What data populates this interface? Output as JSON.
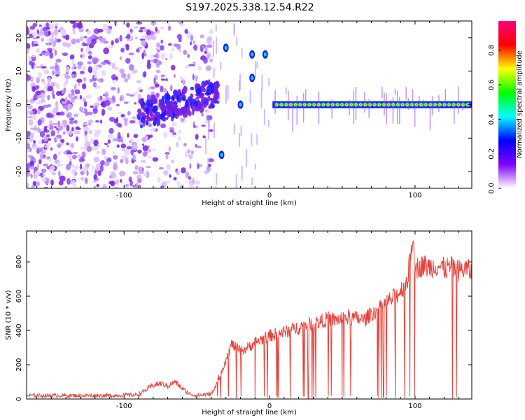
{
  "chart_data": [
    {
      "type": "heatmap",
      "title": "S197.2025.338.12.54.R22",
      "xlabel": "Height of straight line (km)",
      "ylabel": "Frequency (Hz)",
      "xlim": [
        -167,
        139
      ],
      "ylim": [
        -25,
        25
      ],
      "xticks": [
        -100,
        0,
        100
      ],
      "yticks": [
        -20,
        -10,
        0,
        10,
        20
      ],
      "colorbar": {
        "label": "Normalized spectral amplitude",
        "range": [
          0,
          0.97
        ],
        "ticks": [
          0.0,
          0.2,
          0.4,
          0.6,
          0.8
        ],
        "colormap": [
          "#ffffff",
          "#8000ff",
          "#0000ff",
          "#00ffff",
          "#00ff00",
          "#ffff00",
          "#ff0000",
          "#ff0080"
        ]
      },
      "features": [
        {
          "name": "broadband noise region",
          "x_range": [
            -167,
            -40
          ],
          "freq_range": [
            -25,
            25
          ]
        },
        {
          "name": "rising branch",
          "x_range": [
            -90,
            -35
          ],
          "freq_range": [
            -5,
            5
          ]
        },
        {
          "name": "main tone",
          "x_range": [
            2,
            139
          ],
          "freq": 0
        }
      ]
    },
    {
      "type": "line",
      "xlabel": "Height of straight line (km)",
      "ylabel": "SNR (10 * v/v)",
      "xlim": [
        -167,
        139
      ],
      "ylim": [
        0,
        980
      ],
      "xticks": [
        -100,
        0,
        100
      ],
      "yticks": [
        0,
        200,
        400,
        600,
        800
      ],
      "series": [
        {
          "name": "SNR",
          "color": "#e8413a",
          "x": [
            -167,
            -150,
            -130,
            -110,
            -90,
            -80,
            -75,
            -70,
            -65,
            -60,
            -55,
            -50,
            -45,
            -40,
            -35,
            -30,
            -26,
            -20,
            -15,
            -10,
            -5,
            0,
            5,
            10,
            15,
            20,
            25,
            30,
            35,
            40,
            45,
            50,
            55,
            60,
            65,
            70,
            75,
            80,
            85,
            90,
            95,
            98,
            100,
            105,
            110,
            115,
            120,
            125,
            130,
            135,
            139
          ],
          "values": [
            20,
            20,
            20,
            20,
            25,
            80,
            90,
            75,
            100,
            60,
            30,
            20,
            25,
            30,
            120,
            230,
            320,
            280,
            300,
            330,
            350,
            370,
            380,
            390,
            400,
            420,
            430,
            440,
            450,
            470,
            460,
            470,
            475,
            470,
            460,
            500,
            520,
            560,
            590,
            630,
            700,
            930,
            760,
            780,
            770,
            780,
            760,
            770,
            750,
            760,
            740
          ]
        }
      ]
    }
  ]
}
